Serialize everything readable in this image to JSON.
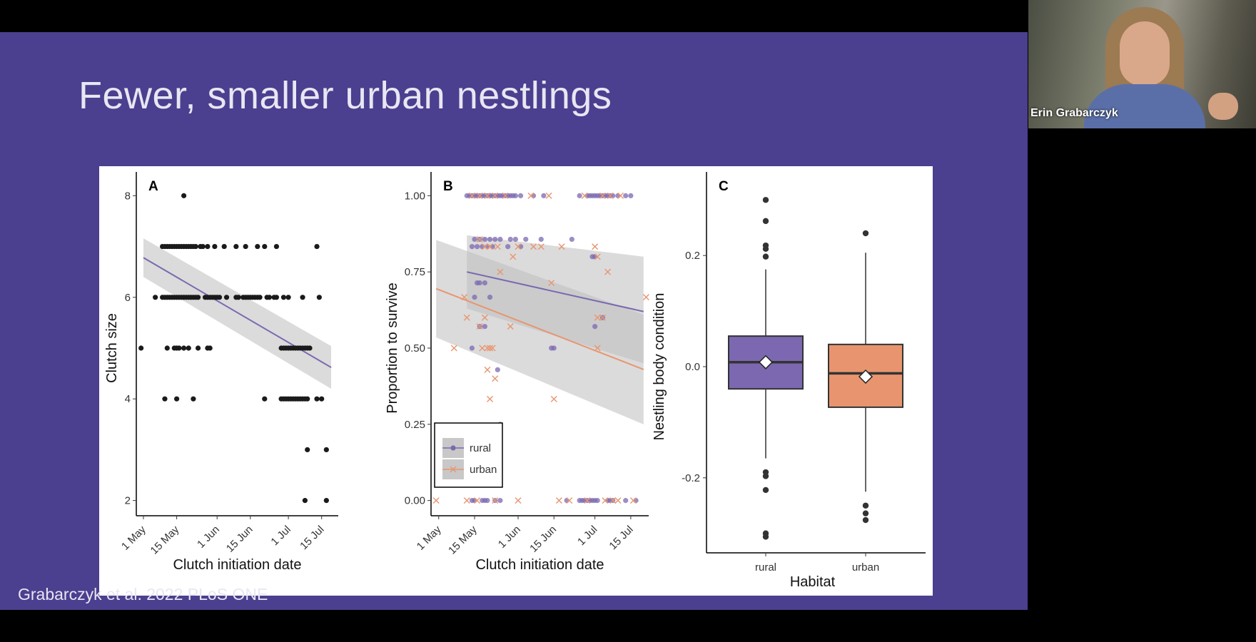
{
  "slide": {
    "title": "Fewer, smaller urban nestlings",
    "citation": "Grabarczyk et al. 2022 PLoS ONE",
    "background_color": "#4b3f8f"
  },
  "webcam": {
    "speaker_name": "Erin Grabarczyk"
  },
  "colors": {
    "rural": "#7b68b0",
    "urban": "#e8956f",
    "points_a": "#1a1a1a",
    "band": "#bdbdbd"
  },
  "chart_data": [
    {
      "panel": "A",
      "type": "scatter",
      "xlabel": "Clutch initiation date",
      "ylabel": "Clutch size",
      "x_ticks": [
        "1 May",
        "15 May",
        "1 Jun",
        "15 Jun",
        "1 Jul",
        "15 Jul"
      ],
      "x_tick_days": [
        0,
        14,
        31,
        45,
        61,
        75
      ],
      "y_ticks": [
        "2",
        "4",
        "6",
        "8"
      ],
      "xlim": [
        -3,
        82
      ],
      "ylim": [
        1.7,
        8.3
      ],
      "points": [
        [
          -1,
          5
        ],
        [
          5,
          6
        ],
        [
          8,
          7
        ],
        [
          9,
          7
        ],
        [
          10,
          7
        ],
        [
          11,
          7
        ],
        [
          12,
          7
        ],
        [
          13,
          7
        ],
        [
          14,
          7
        ],
        [
          15,
          7
        ],
        [
          16,
          7
        ],
        [
          17,
          7
        ],
        [
          18,
          7
        ],
        [
          19,
          7
        ],
        [
          20,
          7
        ],
        [
          21,
          7
        ],
        [
          22,
          7
        ],
        [
          24,
          7
        ],
        [
          25,
          7
        ],
        [
          27,
          7
        ],
        [
          30,
          7
        ],
        [
          34,
          7
        ],
        [
          39,
          7
        ],
        [
          43,
          7
        ],
        [
          48,
          7
        ],
        [
          51,
          7
        ],
        [
          56,
          7
        ],
        [
          8,
          6
        ],
        [
          9,
          6
        ],
        [
          10,
          6
        ],
        [
          11,
          6
        ],
        [
          12,
          6
        ],
        [
          13,
          6
        ],
        [
          14,
          6
        ],
        [
          15,
          6
        ],
        [
          16,
          6
        ],
        [
          17,
          6
        ],
        [
          18,
          6
        ],
        [
          19,
          6
        ],
        [
          20,
          6
        ],
        [
          21,
          6
        ],
        [
          22,
          6
        ],
        [
          23,
          6
        ],
        [
          26,
          6
        ],
        [
          27,
          6
        ],
        [
          28,
          6
        ],
        [
          29,
          6
        ],
        [
          30,
          6
        ],
        [
          31,
          6
        ],
        [
          32,
          6
        ],
        [
          35,
          6
        ],
        [
          39,
          6
        ],
        [
          40,
          6
        ],
        [
          42,
          6
        ],
        [
          43,
          6
        ],
        [
          44,
          6
        ],
        [
          45,
          6
        ],
        [
          46,
          6
        ],
        [
          47,
          6
        ],
        [
          48,
          6
        ],
        [
          49,
          6
        ],
        [
          52,
          6
        ],
        [
          53,
          6
        ],
        [
          55,
          6
        ],
        [
          56,
          6
        ],
        [
          59,
          6
        ],
        [
          61,
          6
        ],
        [
          67,
          6
        ],
        [
          74,
          6
        ],
        [
          10,
          5
        ],
        [
          13,
          5
        ],
        [
          14,
          5
        ],
        [
          15,
          5
        ],
        [
          17,
          5
        ],
        [
          19,
          5
        ],
        [
          23,
          5
        ],
        [
          27,
          5
        ],
        [
          28,
          5
        ],
        [
          58,
          5
        ],
        [
          59,
          5
        ],
        [
          60,
          5
        ],
        [
          61,
          5
        ],
        [
          62,
          5
        ],
        [
          63,
          5
        ],
        [
          64,
          5
        ],
        [
          65,
          5
        ],
        [
          66,
          5
        ],
        [
          67,
          5
        ],
        [
          68,
          5
        ],
        [
          69,
          5
        ],
        [
          70,
          5
        ],
        [
          9,
          4
        ],
        [
          14,
          4
        ],
        [
          21,
          4
        ],
        [
          51,
          4
        ],
        [
          58,
          4
        ],
        [
          59,
          4
        ],
        [
          60,
          4
        ],
        [
          61,
          4
        ],
        [
          62,
          4
        ],
        [
          63,
          4
        ],
        [
          64,
          4
        ],
        [
          65,
          4
        ],
        [
          66,
          4
        ],
        [
          67,
          4
        ],
        [
          68,
          4
        ],
        [
          69,
          4
        ],
        [
          73,
          4
        ],
        [
          75,
          4
        ],
        [
          17,
          8
        ],
        [
          73,
          7
        ],
        [
          69,
          3
        ],
        [
          77,
          3
        ],
        [
          68,
          2
        ],
        [
          77,
          2
        ]
      ],
      "fit": {
        "x": [
          0,
          79
        ],
        "y": [
          6.78,
          4.62
        ],
        "ci_low": [
          6.4,
          4.2
        ],
        "ci_high": [
          7.16,
          5.04
        ]
      }
    },
    {
      "panel": "B",
      "type": "scatter",
      "xlabel": "Clutch initiation date",
      "ylabel": "Proportion to survive",
      "x_ticks": [
        "1 May",
        "15 May",
        "1 Jun",
        "15 Jun",
        "1 Jul",
        "15 Jul"
      ],
      "x_tick_days": [
        0,
        14,
        31,
        45,
        61,
        75
      ],
      "y_ticks": [
        "0.00",
        "0.25",
        "0.50",
        "0.75",
        "1.00"
      ],
      "xlim": [
        -3,
        82
      ],
      "ylim": [
        -0.05,
        1.05
      ],
      "legend": {
        "position": "bottom-left",
        "entries": [
          "rural",
          "urban"
        ]
      },
      "series": [
        {
          "name": "rural",
          "marker": "circle",
          "points": [
            [
              11,
              1
            ],
            [
              12,
              1
            ],
            [
              13,
              1
            ],
            [
              14,
              1
            ],
            [
              15,
              1
            ],
            [
              16,
              1
            ],
            [
              17,
              1
            ],
            [
              18,
              1
            ],
            [
              19,
              1
            ],
            [
              20,
              1
            ],
            [
              21,
              1
            ],
            [
              22,
              1
            ],
            [
              23,
              1
            ],
            [
              24,
              1
            ],
            [
              25,
              1
            ],
            [
              26,
              1
            ],
            [
              27,
              1
            ],
            [
              28,
              1
            ],
            [
              29,
              1
            ],
            [
              30,
              1
            ],
            [
              32,
              1
            ],
            [
              37,
              1
            ],
            [
              41,
              1
            ],
            [
              55,
              1
            ],
            [
              58,
              1
            ],
            [
              59,
              1
            ],
            [
              60,
              1
            ],
            [
              61,
              1
            ],
            [
              62,
              1
            ],
            [
              63,
              1
            ],
            [
              64,
              1
            ],
            [
              65,
              1
            ],
            [
              66,
              1
            ],
            [
              67,
              1
            ],
            [
              68,
              1
            ],
            [
              70,
              1
            ],
            [
              73,
              1
            ],
            [
              75,
              1
            ],
            [
              14,
              0.857
            ],
            [
              16,
              0.857
            ],
            [
              18,
              0.857
            ],
            [
              20,
              0.857
            ],
            [
              22,
              0.857
            ],
            [
              24,
              0.857
            ],
            [
              28,
              0.857
            ],
            [
              30,
              0.857
            ],
            [
              34,
              0.857
            ],
            [
              40,
              0.857
            ],
            [
              52,
              0.857
            ],
            [
              13,
              0.833
            ],
            [
              15,
              0.833
            ],
            [
              17,
              0.833
            ],
            [
              19,
              0.833
            ],
            [
              21,
              0.833
            ],
            [
              27,
              0.833
            ],
            [
              32,
              0.833
            ],
            [
              60,
              0.8
            ],
            [
              61,
              0.8
            ],
            [
              15,
              0.714
            ],
            [
              16,
              0.714
            ],
            [
              18,
              0.714
            ],
            [
              64,
              0.6
            ],
            [
              61,
              0.571
            ],
            [
              14,
              0.667
            ],
            [
              20,
              0.667
            ],
            [
              16,
              0.571
            ],
            [
              18,
              0.571
            ],
            [
              13,
              0.5
            ],
            [
              44,
              0.5
            ],
            [
              45,
              0.5
            ],
            [
              23,
              0.429
            ],
            [
              24,
              0.25
            ],
            [
              13,
              0
            ],
            [
              14,
              0
            ],
            [
              17,
              0
            ],
            [
              18,
              0
            ],
            [
              19,
              0
            ],
            [
              22,
              0
            ],
            [
              24,
              0
            ],
            [
              50,
              0
            ],
            [
              55,
              0
            ],
            [
              56,
              0
            ],
            [
              57,
              0
            ],
            [
              58,
              0
            ],
            [
              59,
              0
            ],
            [
              60,
              0
            ],
            [
              61,
              0
            ],
            [
              62,
              0
            ],
            [
              66,
              0
            ],
            [
              67,
              0
            ],
            [
              68,
              0
            ],
            [
              73,
              0
            ],
            [
              77,
              0
            ]
          ],
          "fit": {
            "x": [
              11,
              80
            ],
            "y": [
              0.75,
              0.62
            ],
            "ci_low": [
              0.63,
              0.45
            ],
            "ci_high": [
              0.87,
              0.8
            ]
          }
        },
        {
          "name": "urban",
          "marker": "x",
          "points": [
            [
              13,
              1
            ],
            [
              16,
              1
            ],
            [
              19,
              1
            ],
            [
              22,
              1
            ],
            [
              26,
              1
            ],
            [
              36,
              1
            ],
            [
              43,
              1
            ],
            [
              57,
              1
            ],
            [
              64,
              1
            ],
            [
              67,
              1
            ],
            [
              71,
              1
            ],
            [
              16,
              0.857
            ],
            [
              18,
              0.833
            ],
            [
              20,
              0.833
            ],
            [
              23,
              0.833
            ],
            [
              29,
              0.8
            ],
            [
              31,
              0.833
            ],
            [
              37,
              0.833
            ],
            [
              40,
              0.833
            ],
            [
              48,
              0.833
            ],
            [
              61,
              0.833
            ],
            [
              44,
              0.714
            ],
            [
              62,
              0.8
            ],
            [
              62,
              0.6
            ],
            [
              64,
              0.6
            ],
            [
              66,
              0.75
            ],
            [
              24,
              0.75
            ],
            [
              10,
              0.667
            ],
            [
              11,
              0.6
            ],
            [
              18,
              0.6
            ],
            [
              16,
              0.571
            ],
            [
              28,
              0.571
            ],
            [
              6,
              0.5
            ],
            [
              17,
              0.5
            ],
            [
              19,
              0.5
            ],
            [
              20,
              0.5
            ],
            [
              21,
              0.5
            ],
            [
              62,
              0.5
            ],
            [
              81,
              0.667
            ],
            [
              19,
              0.429
            ],
            [
              22,
              0.4
            ],
            [
              20,
              0.333
            ],
            [
              45,
              0.333
            ],
            [
              -1,
              0
            ],
            [
              11,
              0
            ],
            [
              15,
              0
            ],
            [
              22,
              0
            ],
            [
              31,
              0
            ],
            [
              47,
              0
            ],
            [
              51,
              0
            ],
            [
              58,
              0
            ],
            [
              65,
              0
            ],
            [
              68,
              0
            ],
            [
              70,
              0
            ],
            [
              76,
              0
            ]
          ],
          "fit": {
            "x": [
              -1,
              80
            ],
            "y": [
              0.695,
              0.43
            ],
            "ci_low": [
              0.535,
              0.25
            ],
            "ci_high": [
              0.855,
              0.61
            ]
          }
        }
      ]
    },
    {
      "panel": "C",
      "type": "box",
      "xlabel": "Habitat",
      "ylabel": "Nestling body condition",
      "categories": [
        "rural",
        "urban"
      ],
      "y_ticks": [
        "-0.2",
        "0.0",
        "0.2"
      ],
      "y_tick_values": [
        -0.2,
        0.0,
        0.2
      ],
      "ylim": [
        -0.335,
        0.335
      ],
      "boxes": [
        {
          "name": "rural",
          "q1": -0.04,
          "median": 0.008,
          "q3": 0.055,
          "mean": 0.008,
          "whisker_low": -0.165,
          "whisker_high": 0.175,
          "outliers": [
            0.3,
            0.262,
            0.218,
            0.212,
            0.198,
            -0.19,
            -0.197,
            -0.222,
            -0.3,
            -0.306
          ]
        },
        {
          "name": "urban",
          "q1": -0.073,
          "median": -0.012,
          "q3": 0.04,
          "mean": -0.018,
          "whisker_low": -0.225,
          "whisker_high": 0.205,
          "outliers": [
            0.24,
            -0.25,
            -0.264,
            -0.276
          ]
        }
      ]
    }
  ]
}
